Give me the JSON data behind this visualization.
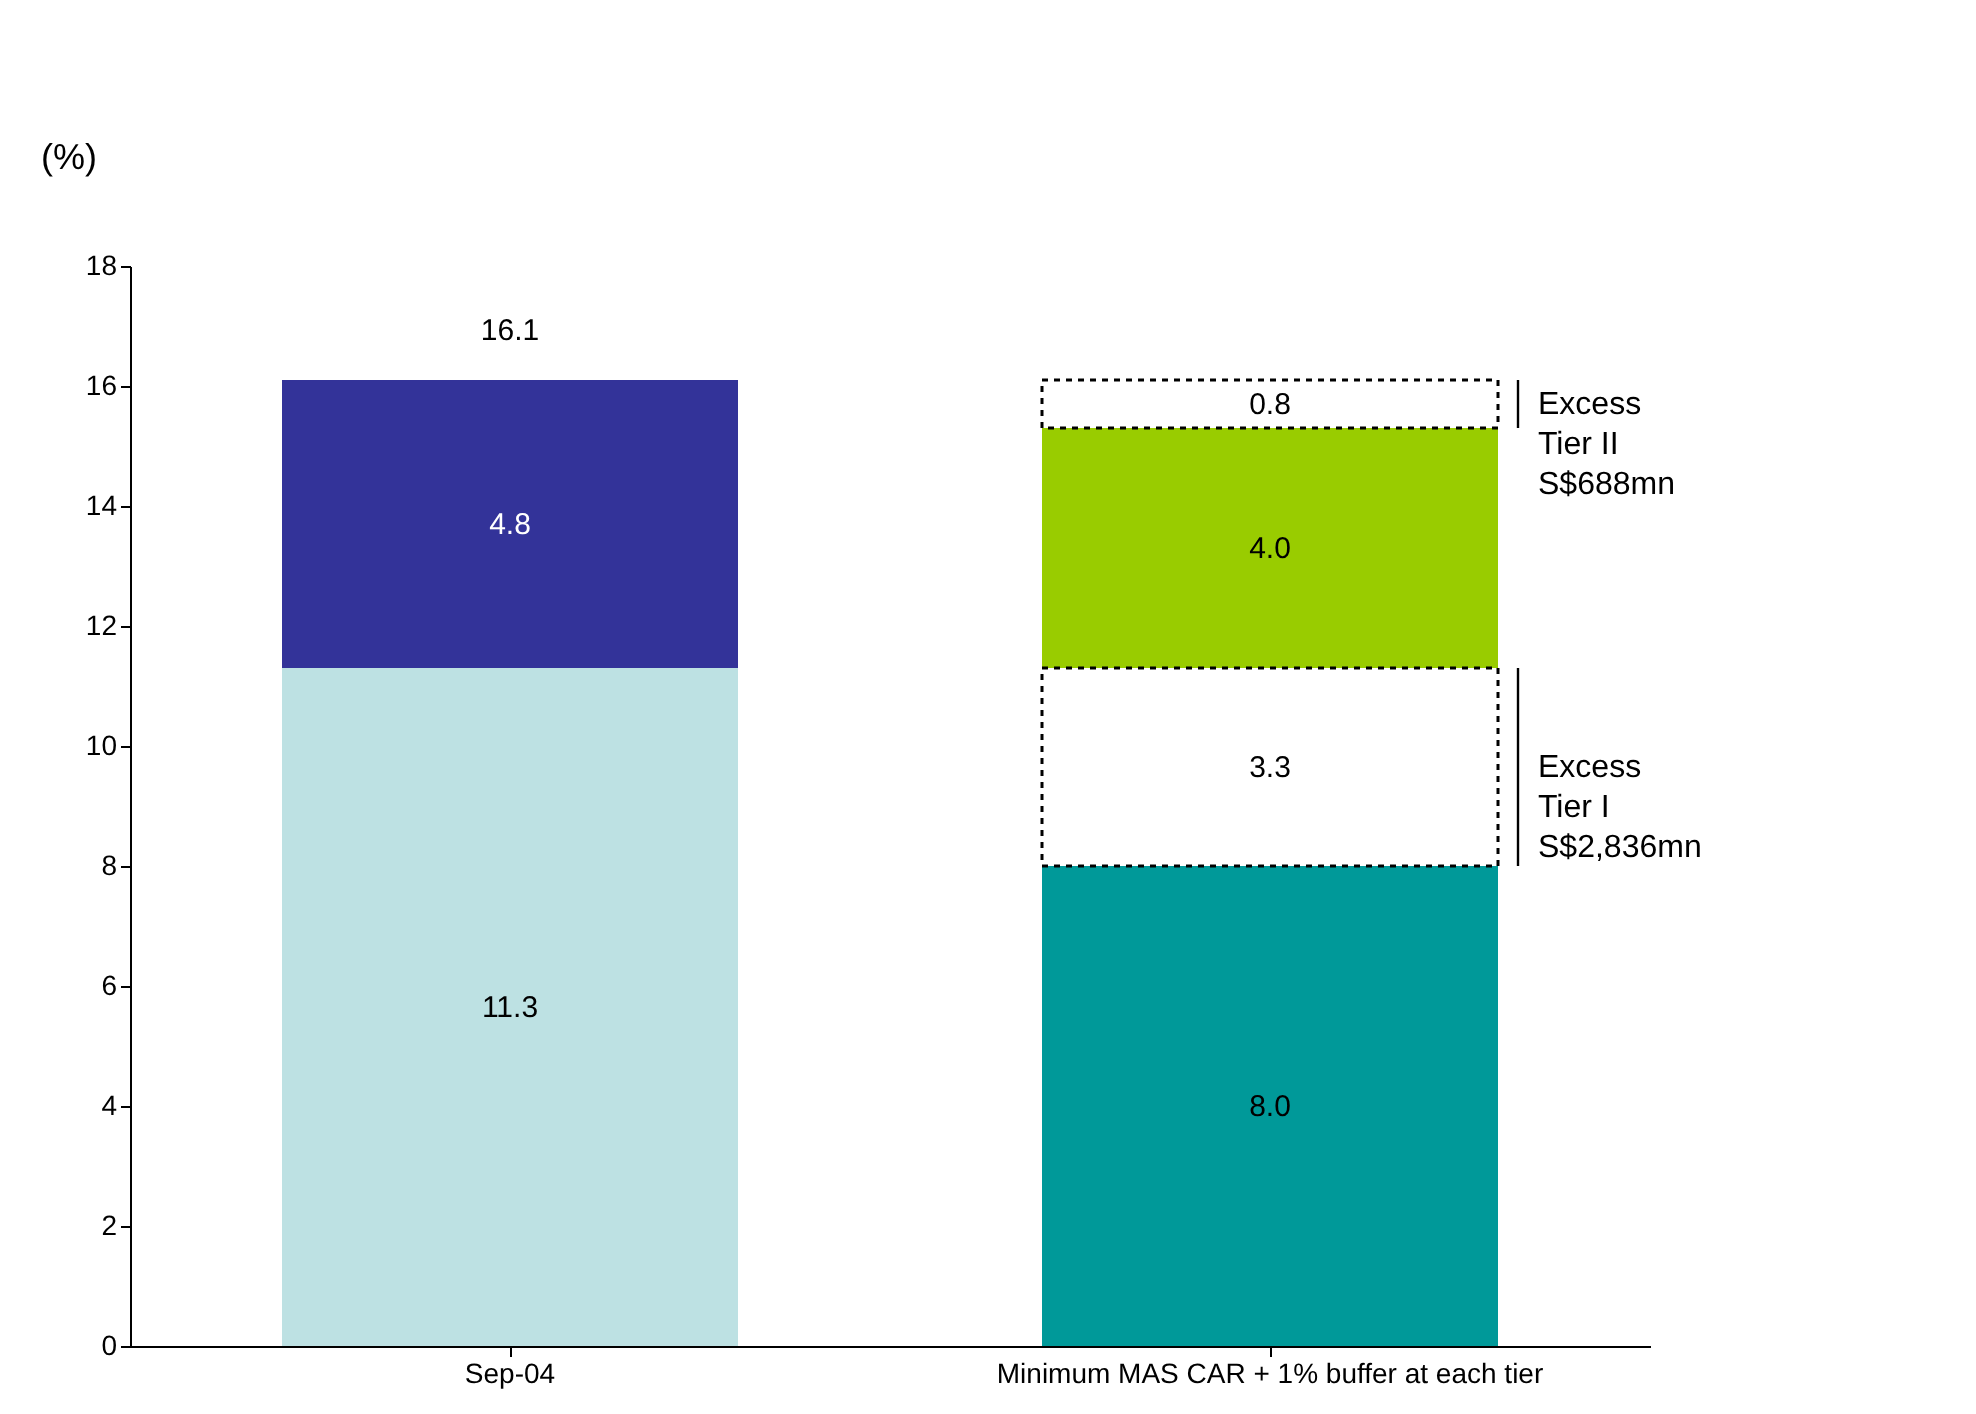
{
  "chart_data": {
    "type": "bar",
    "stacked": true,
    "ylabel": "(%)",
    "categories": [
      "Sep-04",
      "Minimum MAS CAR + 1% buffer at each tier"
    ],
    "series": [
      {
        "colors": [
          "#bde1e3",
          "#009999"
        ],
        "values": [
          11.3,
          8.0
        ],
        "value_labels": [
          "11.3",
          "8.0"
        ]
      },
      {
        "colors": [
          "#333399",
          "#ffffff"
        ],
        "values": [
          4.8,
          3.3
        ],
        "value_labels": [
          "4.8",
          "3.3"
        ],
        "line_style": [
          "solid",
          "dashed"
        ]
      },
      {
        "color": "#99cc00",
        "values": [
          null,
          4.0
        ],
        "value_labels": [
          null,
          "4.0"
        ]
      },
      {
        "color": "#ffffff",
        "values": [
          null,
          0.8
        ],
        "value_labels": [
          null,
          "0.8"
        ],
        "line_style": [
          "solid",
          "dashed"
        ]
      }
    ],
    "totals": [
      "16.1",
      null
    ],
    "ylim": [
      0,
      18
    ],
    "yticks": [
      0,
      2,
      4,
      6,
      8,
      10,
      12,
      14,
      16,
      18
    ],
    "annotations": [
      "Excess\nTier II\nS$688mn",
      "Excess\nTier I\nS$2,836mn"
    ]
  }
}
